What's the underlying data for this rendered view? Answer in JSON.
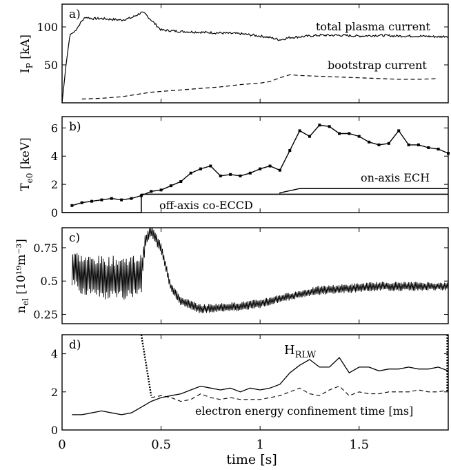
{
  "chart_data": [
    {
      "id": "a",
      "type": "line",
      "panel_label": "a)",
      "ylabel_main": "I",
      "ylabel_sub": "P",
      "ylabel_unit": " [kA]",
      "ylim": [
        0,
        130
      ],
      "yticks": [
        50,
        100
      ],
      "xlim": [
        0,
        1.95
      ],
      "annotations": {
        "total": "total plasma current",
        "bootstrap": "bootstrap current"
      },
      "series": [
        {
          "name": "total plasma current",
          "style": "solid",
          "noise": 1.5,
          "x": [
            0.0,
            0.02,
            0.04,
            0.06,
            0.08,
            0.1,
            0.12,
            0.15,
            0.2,
            0.25,
            0.3,
            0.35,
            0.38,
            0.4,
            0.42,
            0.45,
            0.5,
            0.6,
            0.7,
            0.8,
            0.9,
            1.0,
            1.05,
            1.1,
            1.15,
            1.2,
            1.25,
            1.3,
            1.4,
            1.5,
            1.6,
            1.7,
            1.8,
            1.9,
            1.95
          ],
          "y": [
            0,
            50,
            90,
            93,
            100,
            108,
            113,
            111,
            111,
            110,
            109,
            112,
            116,
            119,
            117,
            109,
            96,
            94,
            93,
            92,
            91,
            88,
            86,
            83,
            86,
            87,
            88,
            89,
            89,
            88,
            89,
            88,
            88,
            87,
            88
          ]
        },
        {
          "name": "bootstrap current",
          "style": "dashed",
          "noise": 0,
          "x": [
            0.1,
            0.2,
            0.3,
            0.35,
            0.4,
            0.45,
            0.5,
            0.6,
            0.7,
            0.8,
            0.9,
            1.0,
            1.05,
            1.1,
            1.15,
            1.2,
            1.3,
            1.4,
            1.5,
            1.6,
            1.7,
            1.8,
            1.9
          ],
          "y": [
            5,
            6,
            8,
            10,
            12,
            14,
            15,
            17,
            19,
            21,
            24,
            26,
            28,
            33,
            37,
            36,
            35,
            34,
            33,
            32,
            31,
            31,
            32
          ]
        }
      ]
    },
    {
      "id": "b",
      "type": "line",
      "panel_label": "b)",
      "ylabel_main": "T",
      "ylabel_sub": "e0",
      "ylabel_unit": " [keV]",
      "ylim": [
        0,
        6.8
      ],
      "yticks": [
        0,
        2,
        4,
        6
      ],
      "xlim": [
        0,
        1.95
      ],
      "annotations": {
        "ech": "on-axis ECH",
        "eccd": "off-axis co-ECCD"
      },
      "series": [
        {
          "name": "T_e0",
          "style": "solid-markers",
          "x": [
            0.05,
            0.1,
            0.15,
            0.2,
            0.25,
            0.3,
            0.35,
            0.4,
            0.45,
            0.5,
            0.55,
            0.6,
            0.65,
            0.7,
            0.75,
            0.8,
            0.85,
            0.9,
            0.95,
            1.0,
            1.05,
            1.1,
            1.15,
            1.2,
            1.25,
            1.3,
            1.35,
            1.4,
            1.45,
            1.5,
            1.55,
            1.6,
            1.65,
            1.7,
            1.75,
            1.8,
            1.85,
            1.9,
            1.95
          ],
          "y": [
            0.5,
            0.7,
            0.8,
            0.9,
            1.0,
            0.9,
            1.0,
            1.2,
            1.5,
            1.6,
            1.9,
            2.2,
            2.8,
            3.1,
            3.3,
            2.6,
            2.7,
            2.6,
            2.8,
            3.1,
            3.3,
            3.0,
            4.4,
            5.8,
            5.4,
            6.2,
            6.1,
            5.6,
            5.6,
            5.4,
            5.0,
            4.8,
            4.9,
            5.8,
            4.8,
            4.8,
            4.6,
            4.5,
            4.2
          ]
        }
      ],
      "heating": {
        "eccd_on": 0.4,
        "ech_on": 1.1,
        "ech_ramp_end": 1.2,
        "eccd_level": 1.3,
        "ech_level": 1.7,
        "ech_ramp_start_level": 1.4
      }
    },
    {
      "id": "c",
      "type": "line",
      "panel_label": "c)",
      "ylabel_main": "n",
      "ylabel_sub": "el",
      "ylabel_unit": " [10¹⁹m⁻³]",
      "ylim": [
        0.18,
        0.9
      ],
      "yticks": [
        0.25,
        0.5,
        0.75
      ],
      "ytick_labels": [
        "0.25",
        "0.5",
        "0.75"
      ],
      "xlim": [
        0,
        1.95
      ],
      "series": [
        {
          "name": "n_el",
          "style": "solid-oscillating",
          "x": [
            0.05,
            0.1,
            0.2,
            0.3,
            0.4,
            0.42,
            0.45,
            0.5,
            0.55,
            0.6,
            0.7,
            0.8,
            0.9,
            1.0,
            1.1,
            1.2,
            1.3,
            1.4,
            1.5,
            1.6,
            1.7,
            1.8,
            1.9,
            1.95
          ],
          "y": [
            0.6,
            0.55,
            0.52,
            0.52,
            0.55,
            0.8,
            0.88,
            0.75,
            0.45,
            0.35,
            0.29,
            0.3,
            0.31,
            0.33,
            0.37,
            0.4,
            0.43,
            0.44,
            0.45,
            0.46,
            0.46,
            0.46,
            0.46,
            0.46
          ],
          "amp": [
            0.15,
            0.15,
            0.17,
            0.17,
            0.15,
            0.05,
            0.04,
            0.05,
            0.04,
            0.035,
            0.035,
            0.035,
            0.035,
            0.035,
            0.03,
            0.03,
            0.035,
            0.035,
            0.035,
            0.035,
            0.035,
            0.035,
            0.03,
            0.03
          ]
        }
      ]
    },
    {
      "id": "d",
      "type": "line",
      "panel_label": "d)",
      "ylim": [
        0,
        5
      ],
      "yticks": [
        0,
        2,
        4
      ],
      "xlim": [
        0,
        1.95
      ],
      "xticks": [
        0,
        0.5,
        1,
        1.5
      ],
      "xtick_labels": [
        "0",
        "0.5",
        "1",
        "1.5"
      ],
      "xlabel": "time [s]",
      "annotations": {
        "hrlw_main": "H",
        "hrlw_sub": "RLW",
        "tau": "electron energy confinement time [ms]"
      },
      "series": [
        {
          "name": "H_RLW",
          "style": "solid",
          "x": [
            0.05,
            0.1,
            0.15,
            0.2,
            0.25,
            0.3,
            0.35,
            0.4,
            0.45,
            0.5,
            0.55,
            0.6,
            0.65,
            0.7,
            0.75,
            0.8,
            0.85,
            0.9,
            0.95,
            1.0,
            1.05,
            1.1,
            1.15,
            1.2,
            1.25,
            1.3,
            1.35,
            1.4,
            1.45,
            1.5,
            1.55,
            1.6,
            1.65,
            1.7,
            1.75,
            1.8,
            1.85,
            1.9,
            1.95
          ],
          "y": [
            0.8,
            0.8,
            0.9,
            1.0,
            0.9,
            0.8,
            0.9,
            1.2,
            1.5,
            1.7,
            1.8,
            1.9,
            2.1,
            2.3,
            2.2,
            2.1,
            2.2,
            2.0,
            2.2,
            2.1,
            2.2,
            2.4,
            3.0,
            3.4,
            3.7,
            3.3,
            3.3,
            3.8,
            3.0,
            3.3,
            3.3,
            3.1,
            3.2,
            3.2,
            3.3,
            3.2,
            3.2,
            3.3,
            3.1
          ]
        },
        {
          "name": "electron energy confinement time [ms]",
          "style": "dashed",
          "x": [
            0.45,
            0.5,
            0.55,
            0.6,
            0.65,
            0.7,
            0.75,
            0.8,
            0.85,
            0.9,
            0.95,
            1.0,
            1.05,
            1.1,
            1.15,
            1.2,
            1.25,
            1.3,
            1.35,
            1.4,
            1.45,
            1.5,
            1.55,
            1.6,
            1.65,
            1.7,
            1.75,
            1.8,
            1.85,
            1.9,
            1.95
          ],
          "y": [
            1.7,
            1.8,
            1.7,
            1.5,
            1.6,
            1.9,
            1.7,
            1.6,
            1.7,
            1.6,
            1.6,
            1.6,
            1.7,
            1.8,
            2.0,
            2.2,
            1.9,
            1.8,
            2.1,
            2.3,
            1.8,
            2.0,
            1.9,
            1.9,
            2.0,
            2.0,
            2.0,
            2.1,
            2.0,
            2.0,
            2.1
          ]
        },
        {
          "name": "dotted-transient-left",
          "style": "dotted",
          "x": [
            0.4,
            0.45
          ],
          "y": [
            5.0,
            1.8
          ]
        },
        {
          "name": "dotted-transient-right",
          "style": "dotted",
          "x": [
            1.945,
            1.945
          ],
          "y": [
            5.0,
            2.0
          ]
        }
      ]
    }
  ]
}
